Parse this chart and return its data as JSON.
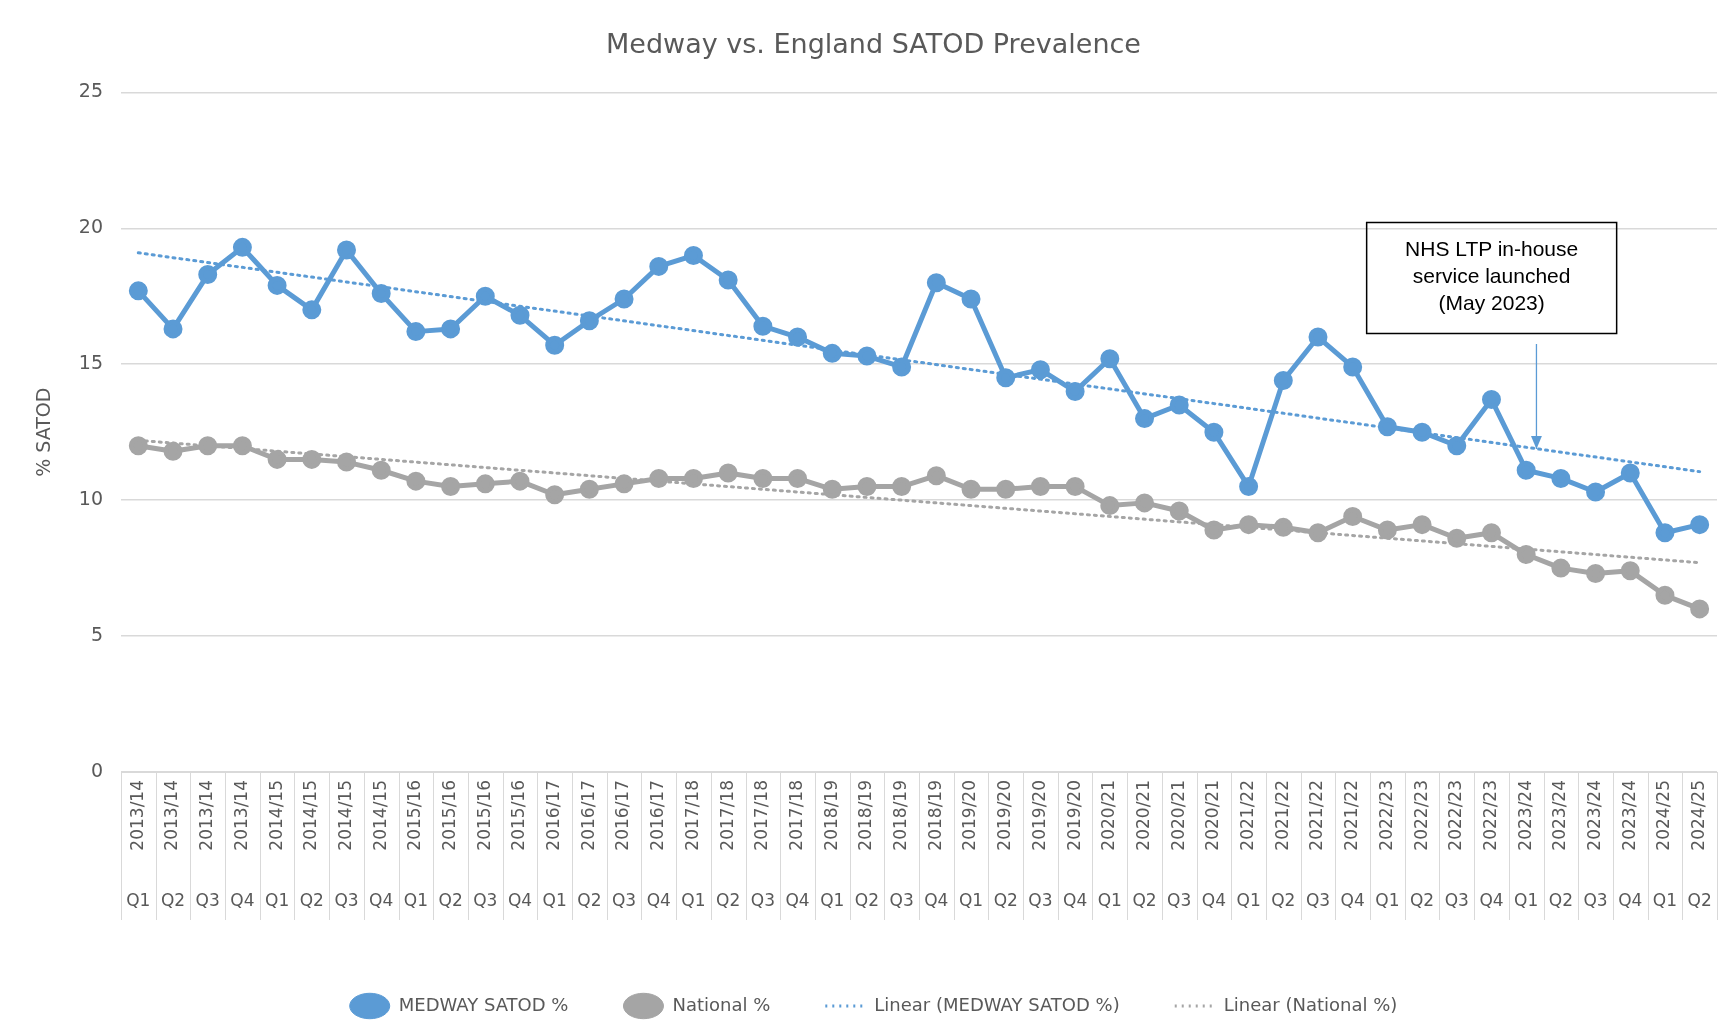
{
  "chart_data": {
    "type": "line",
    "title": "Medway vs. England SATOD Prevalence",
    "ylabel": "% SATOD",
    "categories": [
      "2013/14 Q1",
      "2013/14 Q2",
      "2013/14 Q3",
      "2013/14 Q4",
      "2014/15 Q1",
      "2014/15 Q2",
      "2014/15 Q3",
      "2014/15 Q4",
      "2015/16 Q1",
      "2015/16 Q2",
      "2015/16 Q3",
      "2015/16 Q4",
      "2016/17 Q1",
      "2016/17 Q2",
      "2016/17 Q3",
      "2016/17 Q4",
      "2017/18 Q1",
      "2017/18 Q2",
      "2017/18 Q3",
      "2017/18 Q4",
      "2018/19 Q1",
      "2018/19 Q2",
      "2018/19 Q3",
      "2018/19 Q4",
      "2019/20 Q1",
      "2019/20 Q2",
      "2019/20 Q3",
      "2019/20 Q4",
      "2020/21 Q1",
      "2020/21 Q2",
      "2020/21 Q3",
      "2020/21 Q4",
      "2021/22 Q1",
      "2021/22 Q2",
      "2021/22 Q3",
      "2021/22 Q4",
      "2022/23 Q1",
      "2022/23 Q2",
      "2022/23 Q3",
      "2022/23 Q4",
      "2023/24 Q1",
      "2023/24 Q2",
      "2023/24 Q3",
      "2023/24 Q4",
      "2024/25 Q1",
      "2024/25 Q2"
    ],
    "series": [
      {
        "name": "MEDWAY SATOD %",
        "color": "#5b9bd5",
        "marker": "circle",
        "values": [
          17.7,
          16.3,
          18.3,
          19.3,
          17.9,
          17.0,
          19.2,
          17.6,
          16.2,
          16.3,
          17.5,
          16.8,
          15.7,
          16.6,
          17.4,
          18.6,
          19.0,
          18.1,
          16.4,
          16.0,
          15.4,
          15.3,
          14.9,
          18.0,
          17.4,
          14.5,
          14.8,
          14.0,
          15.2,
          13.0,
          13.5,
          12.5,
          10.5,
          14.4,
          16.0,
          14.9,
          12.7,
          12.5,
          12.0,
          13.7,
          11.1,
          10.8,
          10.3,
          11.0,
          8.8,
          9.1
        ]
      },
      {
        "name": "National %",
        "color": "#a5a5a5",
        "marker": "circle",
        "values": [
          12.0,
          11.8,
          12.0,
          12.0,
          11.5,
          11.5,
          11.4,
          11.1,
          10.7,
          10.5,
          10.6,
          10.7,
          10.2,
          10.4,
          10.6,
          10.8,
          10.8,
          11.0,
          10.8,
          10.8,
          10.4,
          10.5,
          10.5,
          10.9,
          10.4,
          10.4,
          10.5,
          10.5,
          9.8,
          9.9,
          9.6,
          8.9,
          9.1,
          9.0,
          8.8,
          9.4,
          8.9,
          9.1,
          8.6,
          8.8,
          8.0,
          7.5,
          7.3,
          7.4,
          6.5,
          6.0
        ]
      },
      {
        "name": "Linear (MEDWAY SATOD %)",
        "color": "#5b9bd5",
        "type": "line",
        "marker": "none",
        "line_style": "dotted",
        "x": [
          "2013/14 Q1",
          "2024/25 Q2"
        ],
        "values": [
          19.1,
          11.05
        ]
      },
      {
        "name": "Linear (National %)",
        "color": "#a5a5a5",
        "type": "line",
        "marker": "none",
        "line_style": "dotted",
        "x": [
          "2013/14 Q1",
          "2024/25 Q2"
        ],
        "values": [
          12.2,
          7.7
        ]
      }
    ],
    "ylim": [
      0,
      25
    ],
    "yticks": [
      0,
      5,
      10,
      15,
      20,
      25
    ],
    "grid": "y",
    "legend": "bottom",
    "annotations": [
      "NHS LTP in-house service launched (May 2023)"
    ]
  }
}
